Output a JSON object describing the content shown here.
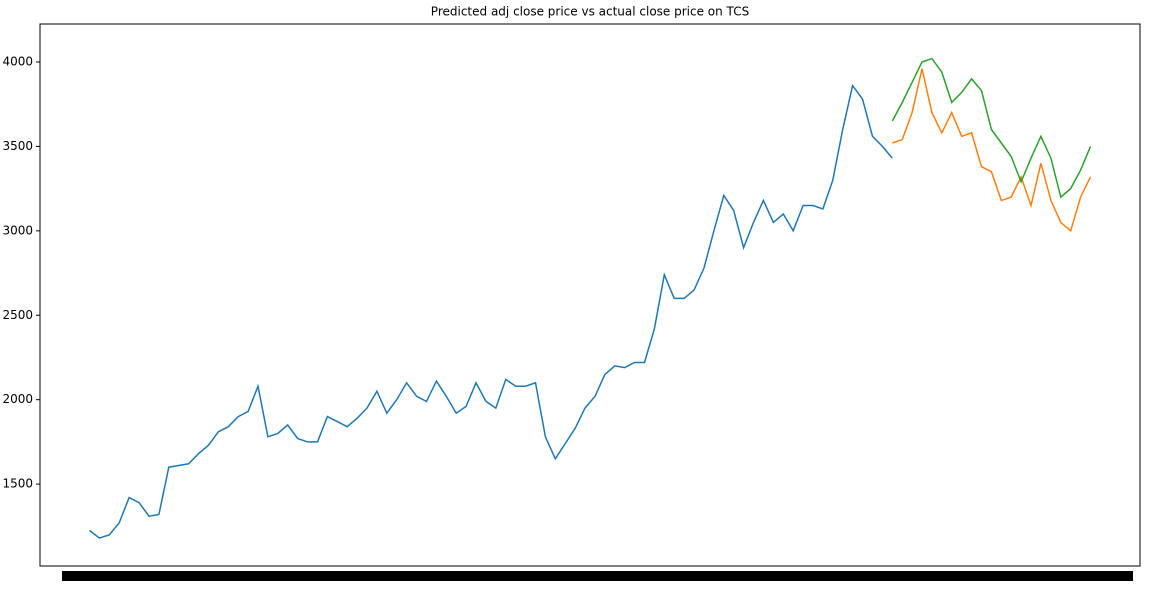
{
  "chart_data": {
    "type": "line",
    "title": "Predicted adj close price vs actual close price on TCS",
    "categories": [
      null,
      null,
      null,
      null,
      null,
      null,
      null,
      null,
      null,
      null,
      null,
      null,
      null,
      null,
      null,
      null,
      null,
      null,
      null,
      null,
      null,
      null,
      null,
      null,
      null,
      null,
      null,
      null,
      null,
      null,
      null,
      null,
      null,
      null,
      null,
      null,
      null,
      null,
      null,
      null,
      null,
      null,
      null,
      null,
      null,
      null,
      null,
      null,
      null,
      null,
      null,
      null,
      null,
      null,
      null,
      null,
      null,
      null,
      null,
      null,
      null,
      null,
      null,
      null,
      null,
      null,
      null,
      null,
      null,
      null,
      null,
      null,
      null,
      null,
      null,
      null,
      null,
      null,
      null,
      null,
      null,
      null,
      null,
      null,
      null,
      null,
      null,
      null,
      null,
      null,
      null,
      null,
      null,
      null,
      null,
      null,
      null,
      null,
      null,
      null,
      null,
      null
    ],
    "series": [
      {
        "color": "#1f77b4",
        "values": [
          1225,
          1180,
          1200,
          1270,
          1420,
          1390,
          1310,
          1320,
          1600,
          1610,
          1620,
          1680,
          1730,
          1810,
          1840,
          1900,
          1930,
          2080,
          1780,
          1800,
          1850,
          1770,
          1750,
          1750,
          1900,
          1870,
          1840,
          1890,
          1950,
          2050,
          1920,
          2000,
          2100,
          2020,
          1990,
          2110,
          2020,
          1920,
          1960,
          2100,
          1990,
          1950,
          2120,
          2080,
          2080,
          2100,
          1780,
          1650,
          1740,
          1830,
          1950,
          2020,
          2150,
          2200,
          2190,
          2220,
          2220,
          2420,
          2740,
          2600,
          2600,
          2650,
          2780,
          3000,
          3210,
          3120,
          2900,
          3050,
          3180,
          3050,
          3100,
          3000,
          3150,
          3150,
          3130,
          3300,
          3600,
          3860,
          3780,
          3560,
          3500,
          3430,
          null,
          null,
          null,
          null,
          null,
          null,
          null,
          null,
          null,
          null,
          null,
          null,
          null,
          null,
          null,
          null,
          null,
          null,
          null,
          null
        ]
      },
      {
        "color": "#ff7f0e",
        "values": [
          null,
          null,
          null,
          null,
          null,
          null,
          null,
          null,
          null,
          null,
          null,
          null,
          null,
          null,
          null,
          null,
          null,
          null,
          null,
          null,
          null,
          null,
          null,
          null,
          null,
          null,
          null,
          null,
          null,
          null,
          null,
          null,
          null,
          null,
          null,
          null,
          null,
          null,
          null,
          null,
          null,
          null,
          null,
          null,
          null,
          null,
          null,
          null,
          null,
          null,
          null,
          null,
          null,
          null,
          null,
          null,
          null,
          null,
          null,
          null,
          null,
          null,
          null,
          null,
          null,
          null,
          null,
          null,
          null,
          null,
          null,
          null,
          null,
          null,
          null,
          null,
          null,
          null,
          null,
          null,
          null,
          3520,
          3540,
          3700,
          3960,
          3700,
          3580,
          3700,
          3560,
          3580,
          3380,
          3350,
          3180,
          3200,
          3320,
          3150,
          3400,
          3180,
          3050,
          3000,
          3200,
          3320
        ]
      },
      {
        "color": "#2ca02c",
        "values": [
          null,
          null,
          null,
          null,
          null,
          null,
          null,
          null,
          null,
          null,
          null,
          null,
          null,
          null,
          null,
          null,
          null,
          null,
          null,
          null,
          null,
          null,
          null,
          null,
          null,
          null,
          null,
          null,
          null,
          null,
          null,
          null,
          null,
          null,
          null,
          null,
          null,
          null,
          null,
          null,
          null,
          null,
          null,
          null,
          null,
          null,
          null,
          null,
          null,
          null,
          null,
          null,
          null,
          null,
          null,
          null,
          null,
          null,
          null,
          null,
          null,
          null,
          null,
          null,
          null,
          null,
          null,
          null,
          null,
          null,
          null,
          null,
          null,
          null,
          null,
          null,
          null,
          null,
          null,
          null,
          null,
          3650,
          3760,
          3880,
          4000,
          4020,
          3940,
          3760,
          3820,
          3900,
          3830,
          3600,
          3520,
          3440,
          3290,
          3430,
          3560,
          3430,
          3200,
          3250,
          3360,
          3500
        ]
      }
    ],
    "ylim": [
      1015,
      4225
    ],
    "yticks": [
      1500,
      2000,
      2500,
      3000,
      3500,
      4000
    ]
  }
}
